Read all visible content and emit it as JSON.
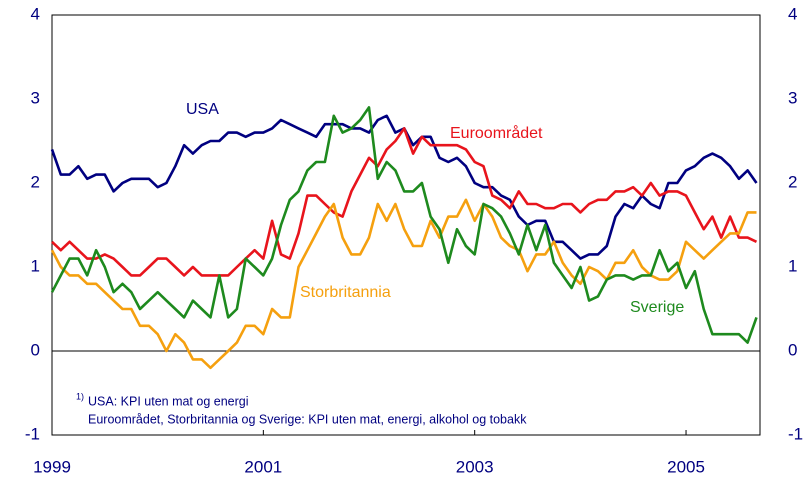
{
  "chart_data": {
    "type": "line",
    "footnote_marker": "1)",
    "footnote_lines": [
      "USA: KPI uten mat og energi",
      "Euroområdet, Storbritannia og Sverige: KPI uten mat, energi, alkohol og tobakk"
    ],
    "x": [
      1999,
      1999.083,
      1999.167,
      1999.25,
      1999.333,
      1999.417,
      1999.5,
      1999.583,
      1999.667,
      1999.75,
      1999.833,
      1999.917,
      2000,
      2000.083,
      2000.167,
      2000.25,
      2000.333,
      2000.417,
      2000.5,
      2000.583,
      2000.667,
      2000.75,
      2000.833,
      2000.917,
      2001,
      2001.083,
      2001.167,
      2001.25,
      2001.333,
      2001.417,
      2001.5,
      2001.583,
      2001.667,
      2001.75,
      2001.833,
      2001.917,
      2002,
      2002.083,
      2002.167,
      2002.25,
      2002.333,
      2002.417,
      2002.5,
      2002.583,
      2002.667,
      2002.75,
      2002.833,
      2002.917,
      2003,
      2003.083,
      2003.167,
      2003.25,
      2003.333,
      2003.417,
      2003.5,
      2003.583,
      2003.667,
      2003.75,
      2003.833,
      2003.917,
      2004,
      2004.083,
      2004.167,
      2004.25,
      2004.333,
      2004.417,
      2004.5,
      2004.583,
      2004.667,
      2004.75,
      2004.833,
      2004.917,
      2005,
      2005.083,
      2005.167,
      2005.25,
      2005.333,
      2005.417,
      2005.5,
      2005.583,
      2005.667
    ],
    "series": [
      {
        "name": "USA",
        "color": "#000080",
        "values": [
          2.4,
          2.1,
          2.1,
          2.2,
          2.05,
          2.1,
          2.1,
          1.9,
          2.0,
          2.05,
          2.05,
          2.05,
          1.95,
          2.0,
          2.2,
          2.45,
          2.35,
          2.45,
          2.5,
          2.5,
          2.6,
          2.6,
          2.55,
          2.6,
          2.6,
          2.65,
          2.75,
          2.7,
          2.65,
          2.6,
          2.55,
          2.7,
          2.7,
          2.7,
          2.65,
          2.65,
          2.6,
          2.75,
          2.8,
          2.6,
          2.65,
          2.45,
          2.55,
          2.55,
          2.3,
          2.25,
          2.3,
          2.2,
          2.0,
          1.95,
          1.95,
          1.85,
          1.8,
          1.6,
          1.5,
          1.55,
          1.55,
          1.3,
          1.3,
          1.2,
          1.1,
          1.15,
          1.15,
          1.25,
          1.6,
          1.75,
          1.7,
          1.85,
          1.75,
          1.7,
          2.0,
          2.0,
          2.15,
          2.2,
          2.3,
          2.35,
          2.3,
          2.2,
          2.05,
          2.15,
          2.0
        ]
      },
      {
        "name": "Euroområdet",
        "color": "#e8141c",
        "values": [
          1.3,
          1.2,
          1.3,
          1.2,
          1.1,
          1.1,
          1.15,
          1.1,
          1.0,
          0.9,
          0.9,
          1.0,
          1.1,
          1.1,
          1.0,
          0.9,
          1.0,
          0.9,
          0.9,
          0.9,
          0.9,
          1.0,
          1.1,
          1.2,
          1.1,
          1.55,
          1.15,
          1.1,
          1.4,
          1.85,
          1.85,
          1.75,
          1.65,
          1.6,
          1.9,
          2.1,
          2.3,
          2.2,
          2.4,
          2.5,
          2.65,
          2.35,
          2.55,
          2.45,
          2.45,
          2.45,
          2.45,
          2.4,
          2.25,
          2.2,
          1.85,
          1.8,
          1.7,
          1.9,
          1.75,
          1.75,
          1.7,
          1.7,
          1.75,
          1.75,
          1.65,
          1.75,
          1.8,
          1.8,
          1.9,
          1.9,
          1.95,
          1.85,
          2.0,
          1.85,
          1.9,
          1.9,
          1.85,
          1.65,
          1.45,
          1.6,
          1.35,
          1.6,
          1.35,
          1.35,
          1.3
        ]
      },
      {
        "name": "Storbritannia",
        "color": "#f5a00f",
        "values": [
          1.2,
          1.0,
          0.9,
          0.9,
          0.8,
          0.8,
          0.7,
          0.6,
          0.5,
          0.5,
          0.3,
          0.3,
          0.2,
          0.0,
          0.2,
          0.1,
          -0.1,
          -0.1,
          -0.2,
          -0.1,
          0.0,
          0.1,
          0.3,
          0.3,
          0.2,
          0.5,
          0.4,
          0.4,
          1.0,
          1.2,
          1.4,
          1.6,
          1.75,
          1.35,
          1.15,
          1.15,
          1.35,
          1.75,
          1.55,
          1.75,
          1.45,
          1.25,
          1.25,
          1.55,
          1.35,
          1.6,
          1.6,
          1.8,
          1.55,
          1.75,
          1.6,
          1.35,
          1.25,
          1.2,
          0.95,
          1.15,
          1.15,
          1.3,
          1.05,
          0.9,
          0.8,
          1.0,
          0.95,
          0.85,
          1.05,
          1.05,
          1.2,
          1.0,
          0.9,
          0.85,
          0.85,
          0.95,
          1.3,
          1.2,
          1.1,
          1.2,
          1.3,
          1.4,
          1.4,
          1.65,
          1.65
        ]
      },
      {
        "name": "Sverige",
        "color": "#1e8a1e",
        "values": [
          0.7,
          0.9,
          1.1,
          1.1,
          0.9,
          1.2,
          1.0,
          0.7,
          0.8,
          0.7,
          0.5,
          0.6,
          0.7,
          0.6,
          0.5,
          0.4,
          0.6,
          0.5,
          0.4,
          0.9,
          0.4,
          0.5,
          1.1,
          1.0,
          0.9,
          1.1,
          1.5,
          1.8,
          1.9,
          2.15,
          2.25,
          2.25,
          2.8,
          2.6,
          2.65,
          2.75,
          2.9,
          2.05,
          2.25,
          2.15,
          1.9,
          1.9,
          2.0,
          1.6,
          1.45,
          1.05,
          1.45,
          1.25,
          1.15,
          1.75,
          1.7,
          1.6,
          1.4,
          1.15,
          1.5,
          1.2,
          1.5,
          1.05,
          0.9,
          0.75,
          1.0,
          0.6,
          0.65,
          0.85,
          0.9,
          0.9,
          0.85,
          0.9,
          0.9,
          1.2,
          0.95,
          1.05,
          0.75,
          0.95,
          0.5,
          0.2,
          0.2,
          0.2,
          0.2,
          0.1,
          0.4
        ]
      }
    ],
    "xlim": [
      1999,
      2005.7
    ],
    "xticks": [
      1999,
      2001,
      2003,
      2005
    ],
    "ylim": [
      -1,
      4
    ],
    "yticks": [
      -1,
      0,
      1,
      2,
      3,
      4
    ],
    "grid": false
  }
}
